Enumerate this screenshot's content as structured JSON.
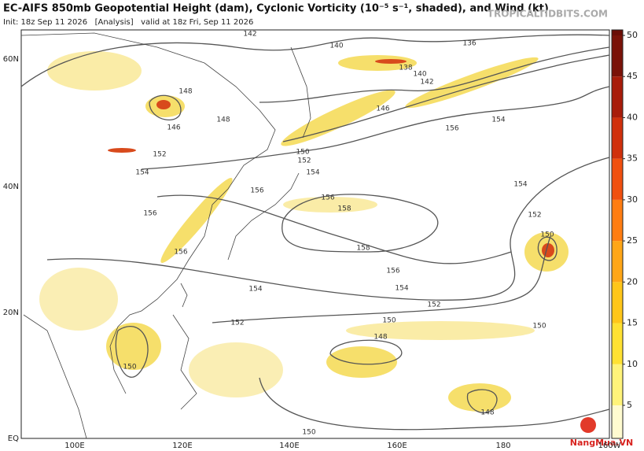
{
  "header": {
    "title": "EC-AIFS 850mb Geopotential Height (dam), Cyclonic Vorticity (10⁻⁵ s⁻¹, shaded), and Wind (kt)",
    "subtitle": "Init: 18z Sep 11 2026   [Analysis]   valid at 18z Fri, Sep 11 2026",
    "source": "TROPICALTIDBITS.COM"
  },
  "map": {
    "lat_labels": [
      "60N",
      "40N",
      "20N",
      "EQ"
    ],
    "lon_labels": [
      "100E",
      "120E",
      "140E",
      "160E",
      "180",
      "160W"
    ],
    "contour_labels": [
      "142",
      "140",
      "136",
      "138",
      "140",
      "142",
      "148",
      "146",
      "148",
      "152",
      "154",
      "150",
      "152",
      "154",
      "156",
      "154",
      "156",
      "156",
      "158",
      "156",
      "156",
      "158",
      "156",
      "154",
      "154",
      "152",
      "152",
      "150",
      "148",
      "150",
      "154",
      "152",
      "150",
      "150",
      "148",
      "150",
      "146"
    ]
  },
  "colorbar": {
    "ticks": [
      5,
      10,
      15,
      20,
      25,
      30,
      35,
      40,
      45,
      50
    ]
  },
  "watermark": "NangMua.VN"
}
